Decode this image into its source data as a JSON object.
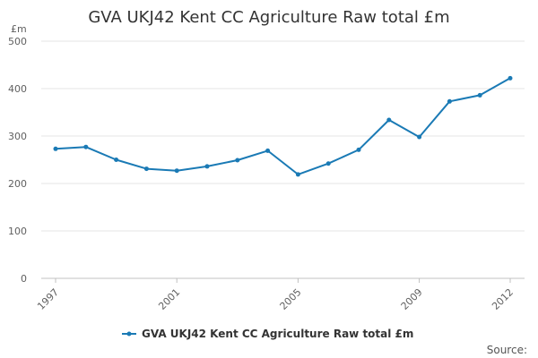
{
  "chart_data": {
    "type": "line",
    "title": "GVA UKJ42 Kent CC Agriculture Raw total £m",
    "unit_label": "£m",
    "xlabel": "",
    "ylabel": "",
    "ylim": [
      0,
      500
    ],
    "yticks": [
      0,
      100,
      200,
      300,
      400,
      500
    ],
    "xlim": [
      1997,
      2012
    ],
    "xticks": [
      1997,
      2001,
      2005,
      2009,
      2012
    ],
    "grid": true,
    "legend_position": "bottom-center",
    "series": [
      {
        "name": "GVA UKJ42 Kent CC Agriculture Raw total £m",
        "color": "#1a7ab5",
        "x": [
          1997,
          1998,
          1999,
          2000,
          2001,
          2002,
          2003,
          2004,
          2005,
          2006,
          2007,
          2008,
          2009,
          2010,
          2011,
          2012
        ],
        "values": [
          273,
          277,
          250,
          231,
          227,
          236,
          249,
          269,
          219,
          242,
          271,
          334,
          298,
          373,
          386,
          422
        ]
      }
    ],
    "source_label": "Source:"
  }
}
